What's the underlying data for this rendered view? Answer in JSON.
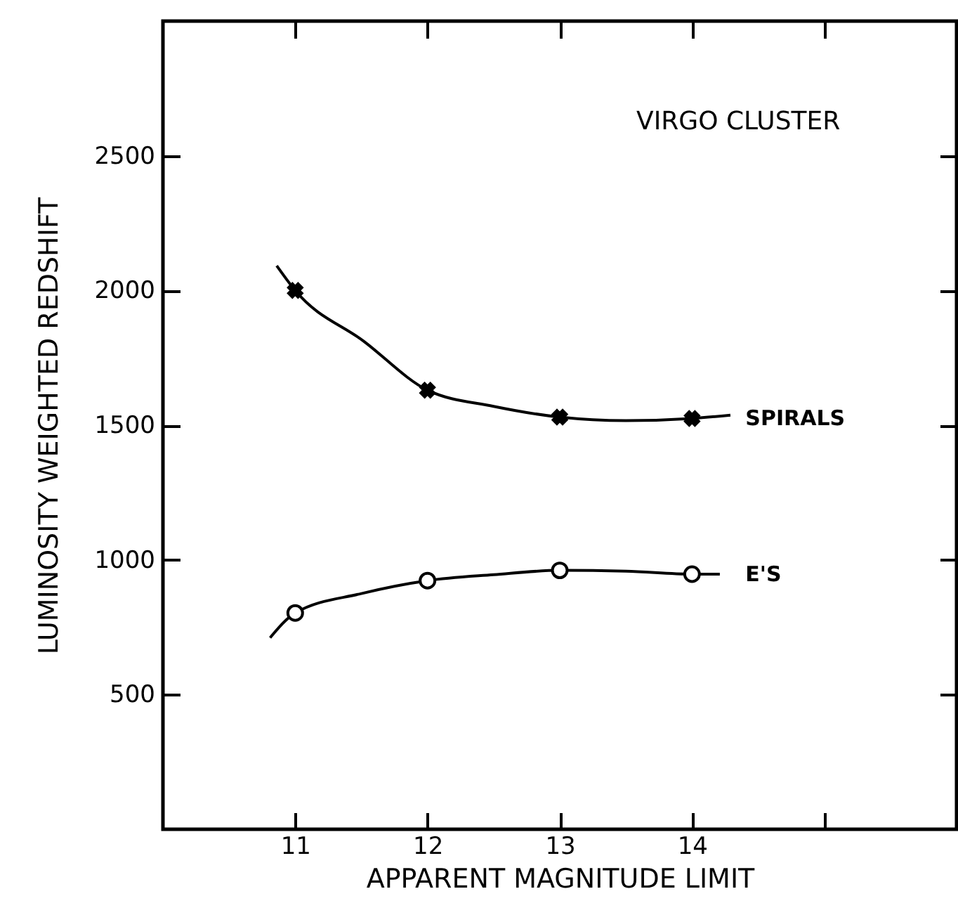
{
  "chart_data": {
    "type": "scatter",
    "xlabel": "APPARENT MAGNITUDE LIMIT",
    "ylabel": "LUMINOSITY WEIGHTED REDSHIFT",
    "annotations": [
      "VIRGO CLUSTER"
    ],
    "xlim": [
      10,
      16
    ],
    "xticks": [
      11,
      12,
      13,
      14,
      {
        "value": 15,
        "label": null
      }
    ],
    "ylim": [
      0,
      3000
    ],
    "yticks": [
      500,
      1000,
      1500,
      2000,
      2500
    ],
    "grid": false,
    "series": [
      {
        "type": "line",
        "color": "#000000",
        "marker": "none",
        "x": [
          10.86,
          11,
          11.52,
          12,
          12.5,
          13,
          13.5,
          14,
          14.29
        ],
        "values": [
          2092,
          2000,
          1811,
          1630,
          1570,
          1530,
          1517,
          1525,
          1537
        ]
      },
      {
        "type": "line",
        "color": "#000000",
        "marker": "none",
        "x": [
          10.81,
          11,
          11.5,
          12,
          12.5,
          13,
          13.5,
          14,
          14.21
        ],
        "values": [
          711,
          803,
          875,
          923,
          945,
          961,
          958,
          947,
          947
        ]
      },
      {
        "name": "SPIRALS",
        "color": "#000000",
        "marker": "cross",
        "x": [
          11,
          12,
          13,
          14
        ],
        "values": [
          2000,
          1630,
          1530,
          1525
        ]
      },
      {
        "name": "E'S",
        "color": "#000000",
        "marker": "circle",
        "x": [
          11,
          12,
          13,
          14
        ],
        "values": [
          803,
          923,
          961,
          947
        ]
      }
    ]
  }
}
